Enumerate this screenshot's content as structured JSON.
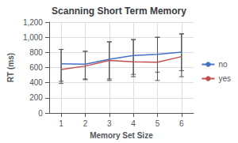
{
  "chart_data": {
    "type": "line",
    "title": "Scanning Short Term Memory",
    "xlabel": "Memory Set Size",
    "ylabel": "RT (ms)",
    "x": [
      1,
      2,
      3,
      4,
      5,
      6
    ],
    "series": [
      {
        "name": "no",
        "color": "#4472C4",
        "values": [
          650,
          645,
          710,
          760,
          775,
          805
        ],
        "err_upper": [
          840,
          815,
          940,
          970,
          1000,
          1045
        ],
        "err_lower": [
          420,
          450,
          450,
          510,
          540,
          560
        ]
      },
      {
        "name": "yes",
        "color": "#C0504D",
        "values": [
          575,
          620,
          695,
          675,
          670,
          745
        ],
        "err_upper": [
          840,
          815,
          940,
          970,
          1000,
          1045
        ],
        "err_lower": [
          390,
          440,
          430,
          480,
          430,
          480
        ]
      }
    ],
    "xlim": [
      0.5,
      6.5
    ],
    "xticks": [
      1,
      2,
      3,
      4,
      5,
      6
    ],
    "ylim": [
      0,
      1200
    ],
    "yticks": [
      0,
      200,
      400,
      600,
      800,
      1000,
      1200
    ],
    "grid": true,
    "legend": "right"
  }
}
